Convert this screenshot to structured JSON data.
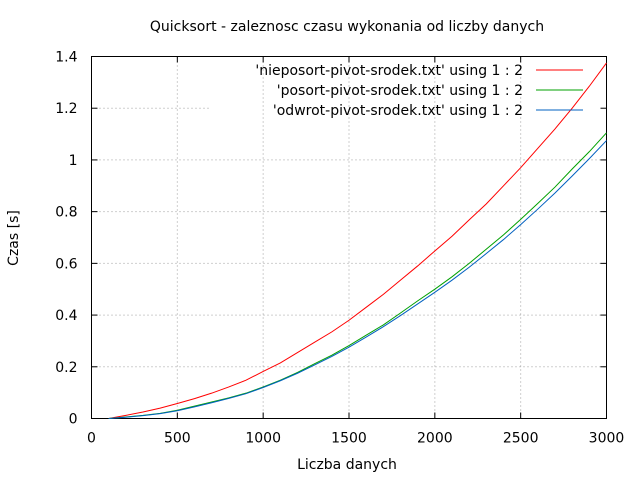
{
  "chart_data": {
    "type": "line",
    "title": "Quicksort - zaleznosc czasu wykonania od liczby danych",
    "xlabel": "Liczba danych",
    "ylabel": "Czas [s]",
    "xlim": [
      0,
      3000
    ],
    "ylim": [
      0,
      1.4
    ],
    "xticks": [
      0,
      500,
      1000,
      1500,
      2000,
      2500,
      3000
    ],
    "xtick_labels": [
      "0",
      "500",
      "1000",
      "1500",
      "2000",
      "2500",
      "3000"
    ],
    "yticks": [
      0,
      0.2,
      0.4,
      0.6,
      0.8,
      1.0,
      1.2,
      1.4
    ],
    "ytick_labels": [
      "0",
      "0.2",
      "0.4",
      "0.6",
      "0.8",
      "1",
      "1.2",
      "1.4"
    ],
    "grid": true,
    "legend_position": "top-right",
    "x": [
      100,
      200,
      300,
      400,
      500,
      600,
      700,
      800,
      900,
      1000,
      1100,
      1200,
      1300,
      1400,
      1500,
      1600,
      1700,
      1800,
      1900,
      2000,
      2100,
      2200,
      2300,
      2400,
      2500,
      2600,
      2700,
      2800,
      2900,
      3000
    ],
    "series": [
      {
        "name": "'nieposort-pivot-srodek.txt' using 1 : 2",
        "color": "#ff0000",
        "values": [
          0.0,
          0.012,
          0.025,
          0.04,
          0.058,
          0.077,
          0.098,
          0.122,
          0.148,
          0.182,
          0.215,
          0.255,
          0.295,
          0.335,
          0.38,
          0.43,
          0.48,
          0.535,
          0.59,
          0.648,
          0.705,
          0.768,
          0.83,
          0.9,
          0.97,
          1.045,
          1.12,
          1.2,
          1.285,
          1.375
        ]
      },
      {
        "name": "'posort-pivot-srodek.txt' using 1 : 2",
        "color": "#00a000",
        "values": [
          0.0,
          0.006,
          0.012,
          0.02,
          0.032,
          0.048,
          0.064,
          0.08,
          0.098,
          0.122,
          0.148,
          0.178,
          0.212,
          0.245,
          0.282,
          0.322,
          0.362,
          0.408,
          0.455,
          0.5,
          0.548,
          0.6,
          0.655,
          0.71,
          0.77,
          0.832,
          0.895,
          0.965,
          1.032,
          1.105
        ]
      },
      {
        "name": "'odwrot-pivot-srodek.txt' using 1 : 2",
        "color": "#0060c0",
        "values": [
          0.0,
          0.005,
          0.011,
          0.019,
          0.03,
          0.045,
          0.061,
          0.078,
          0.096,
          0.12,
          0.146,
          0.175,
          0.207,
          0.24,
          0.276,
          0.315,
          0.355,
          0.398,
          0.443,
          0.488,
          0.535,
          0.585,
          0.638,
          0.692,
          0.75,
          0.81,
          0.872,
          0.938,
          1.005,
          1.075
        ]
      }
    ]
  }
}
